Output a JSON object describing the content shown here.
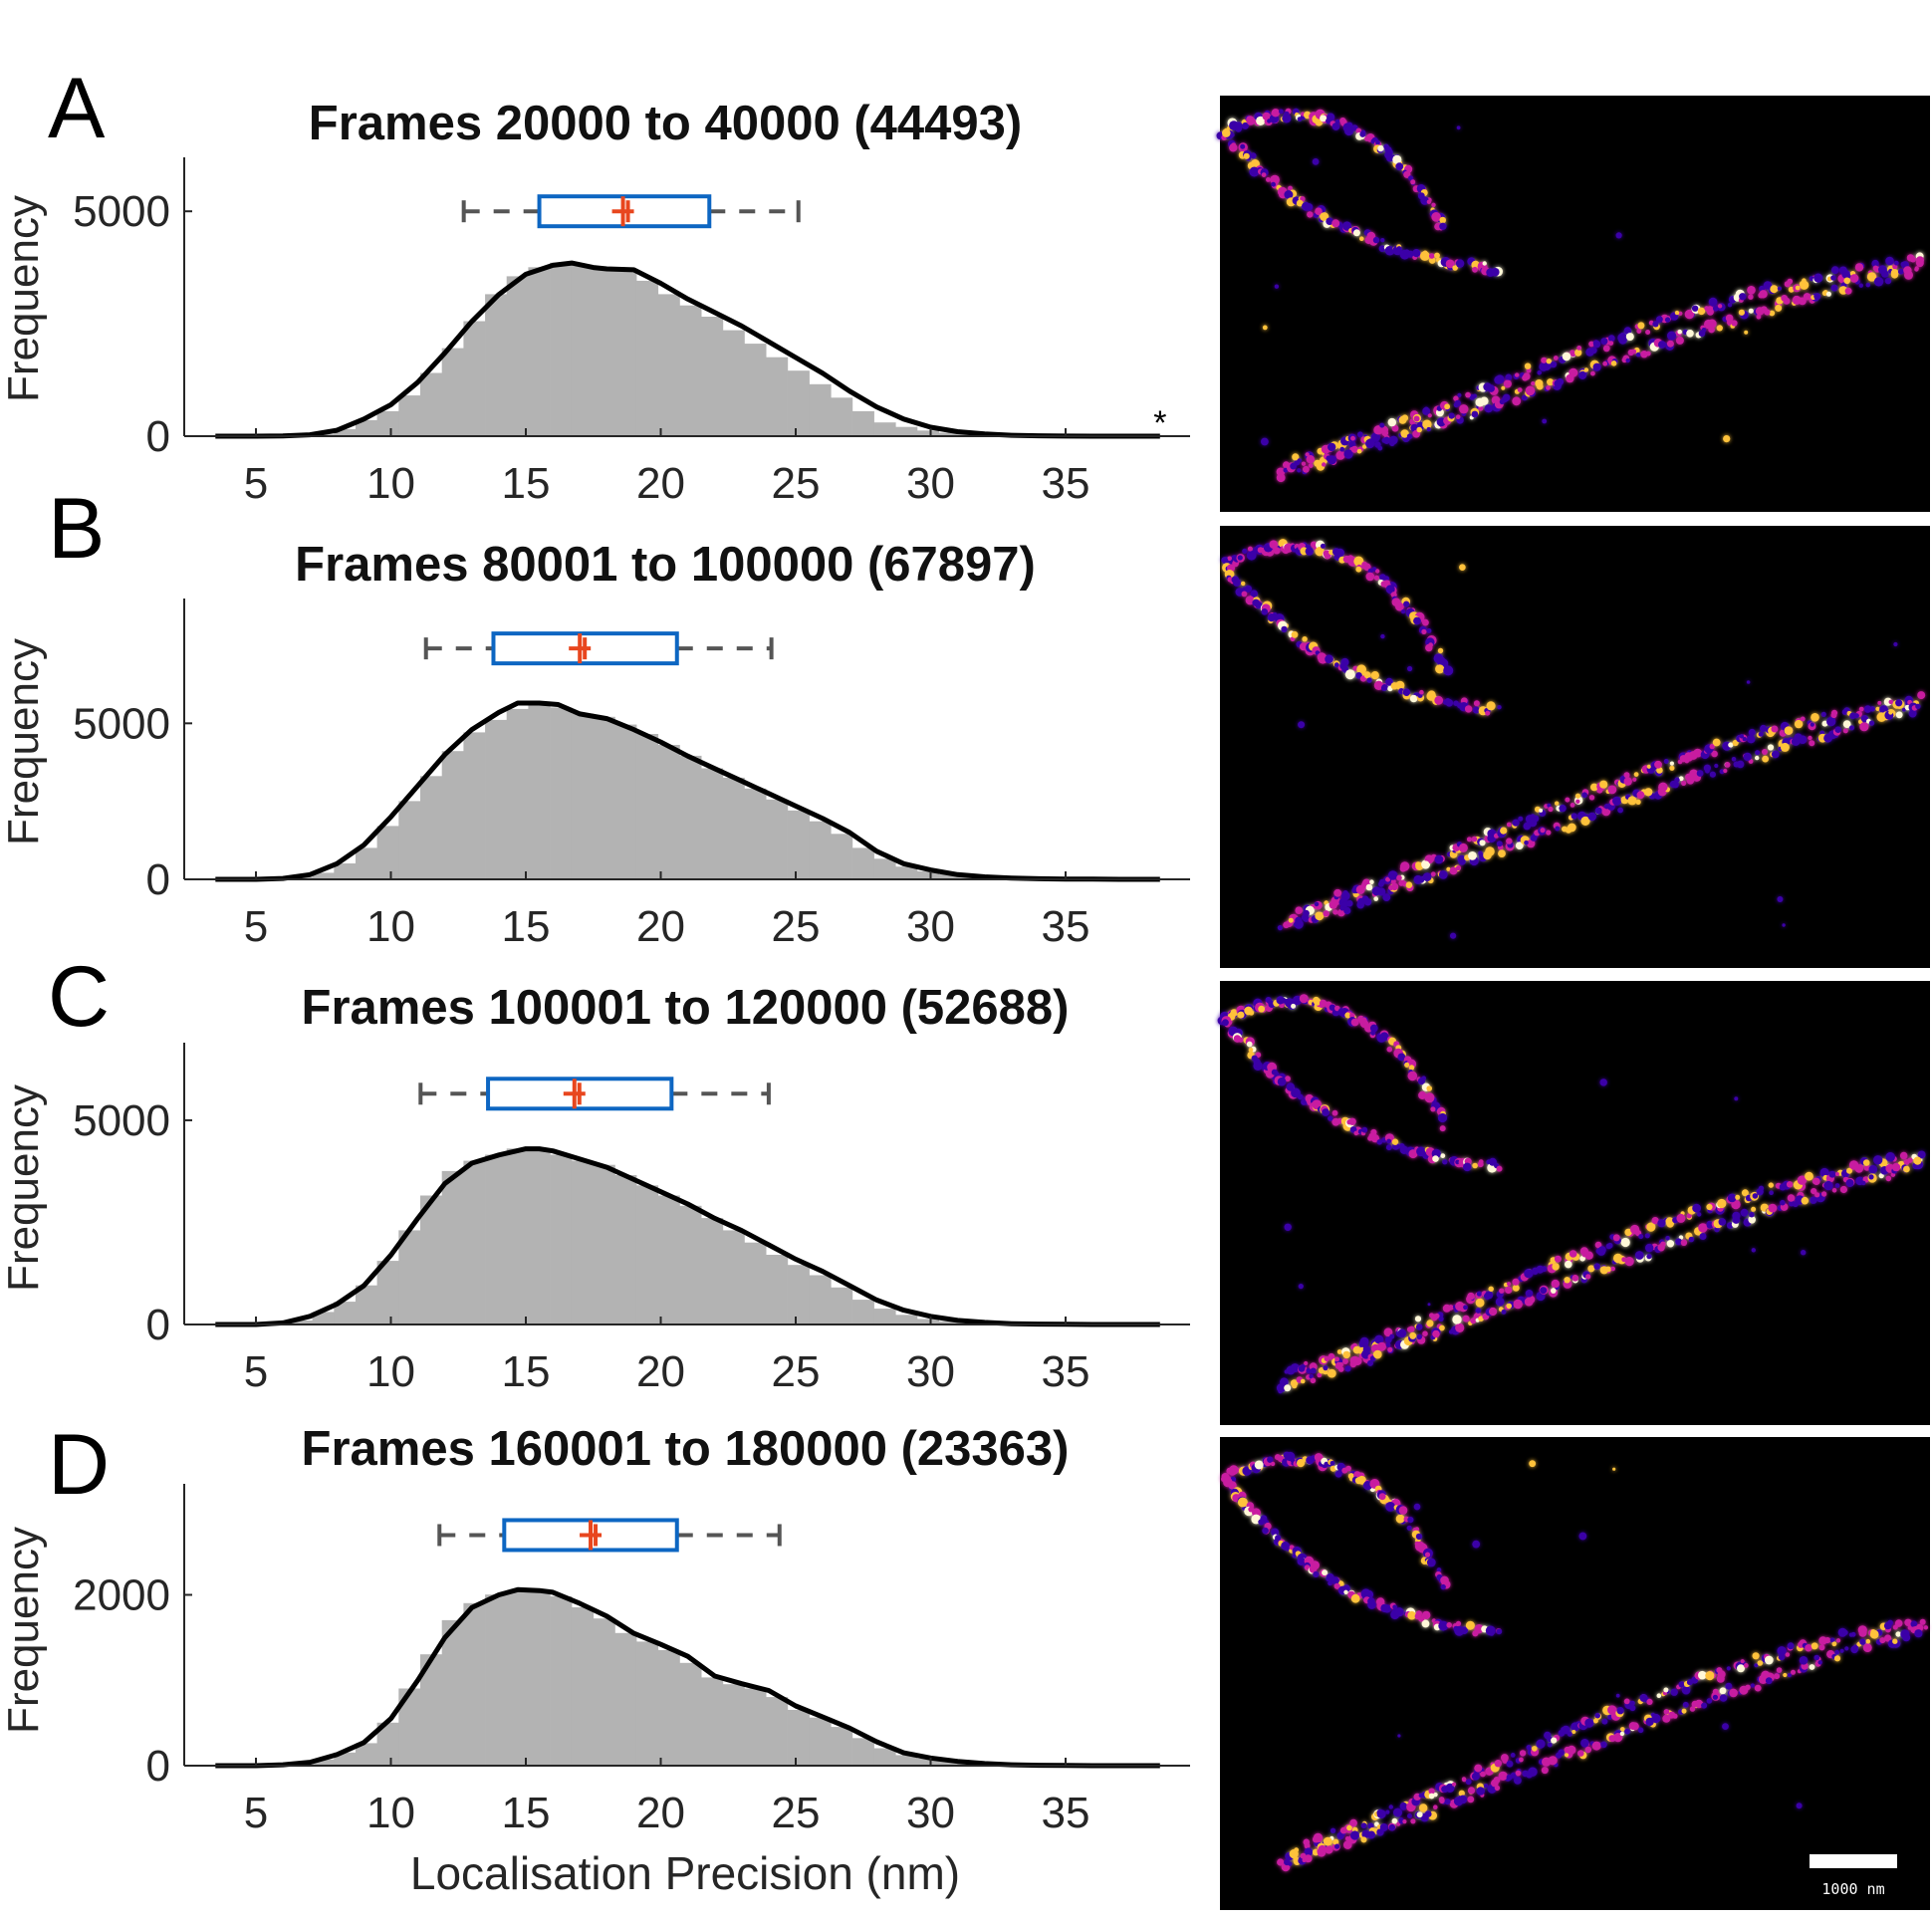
{
  "chart_data": [
    {
      "type": "histogram",
      "panel": "A",
      "title": "Frames 20000 to 40000 (44493)",
      "xlabel": "",
      "ylabel": "Frequency",
      "xlim": [
        2.5,
        40
      ],
      "ylim": [
        0,
        6200
      ],
      "xticks": [
        5,
        10,
        15,
        20,
        25,
        30,
        35
      ],
      "yticks": [
        0,
        5000
      ],
      "bin_width": 0.8,
      "bins": [
        {
          "x": 3.5,
          "y": 0
        },
        {
          "x": 4.3,
          "y": 0
        },
        {
          "x": 5.1,
          "y": 0
        },
        {
          "x": 5.9,
          "y": 0
        },
        {
          "x": 6.7,
          "y": 10
        },
        {
          "x": 7.5,
          "y": 35
        },
        {
          "x": 8.3,
          "y": 150
        },
        {
          "x": 9.1,
          "y": 350
        },
        {
          "x": 9.9,
          "y": 550
        },
        {
          "x": 10.7,
          "y": 900
        },
        {
          "x": 11.5,
          "y": 1400
        },
        {
          "x": 12.3,
          "y": 1950
        },
        {
          "x": 13.1,
          "y": 2550
        },
        {
          "x": 13.9,
          "y": 3150
        },
        {
          "x": 14.7,
          "y": 3550
        },
        {
          "x": 15.5,
          "y": 3750
        },
        {
          "x": 16.3,
          "y": 3850
        },
        {
          "x": 17.1,
          "y": 3800
        },
        {
          "x": 17.9,
          "y": 3700
        },
        {
          "x": 18.7,
          "y": 3700
        },
        {
          "x": 19.5,
          "y": 3450
        },
        {
          "x": 20.3,
          "y": 3150
        },
        {
          "x": 21.1,
          "y": 2900
        },
        {
          "x": 21.9,
          "y": 2650
        },
        {
          "x": 22.7,
          "y": 2350
        },
        {
          "x": 23.5,
          "y": 2050
        },
        {
          "x": 24.3,
          "y": 1750
        },
        {
          "x": 25.1,
          "y": 1450
        },
        {
          "x": 25.9,
          "y": 1150
        },
        {
          "x": 26.7,
          "y": 850
        },
        {
          "x": 27.5,
          "y": 550
        },
        {
          "x": 28.3,
          "y": 300
        },
        {
          "x": 29.1,
          "y": 200
        },
        {
          "x": 29.9,
          "y": 120
        },
        {
          "x": 30.7,
          "y": 70
        },
        {
          "x": 31.5,
          "y": 40
        },
        {
          "x": 32.3,
          "y": 20
        },
        {
          "x": 33.1,
          "y": 10
        },
        {
          "x": 33.9,
          "y": 5
        },
        {
          "x": 34.7,
          "y": 0
        },
        {
          "x": 35.5,
          "y": 0
        },
        {
          "x": 36.3,
          "y": 0
        },
        {
          "x": 37.1,
          "y": 0
        },
        {
          "x": 37.9,
          "y": 0
        }
      ],
      "kde": {
        "x": [
          3.5,
          5,
          6,
          7,
          8,
          9,
          10,
          11,
          12,
          13,
          14,
          15,
          16,
          16.7,
          17.5,
          18,
          19,
          20,
          21,
          22,
          23,
          24,
          25,
          26,
          27,
          28,
          29,
          30,
          31,
          32,
          33,
          34,
          35,
          36,
          37,
          38.5
        ],
        "y": [
          0,
          0,
          5,
          30,
          130,
          380,
          700,
          1200,
          1850,
          2550,
          3150,
          3600,
          3800,
          3850,
          3750,
          3720,
          3700,
          3400,
          3050,
          2750,
          2450,
          2100,
          1750,
          1400,
          1000,
          650,
          380,
          200,
          100,
          50,
          20,
          8,
          3,
          0,
          0,
          0
        ]
      },
      "boxplot": {
        "whisker_low": 12.7,
        "q1": 15.5,
        "median": 18.6,
        "mean": 18.6,
        "q3": 21.8,
        "whisker_high": 25.1,
        "y": 5000
      },
      "annotation": "*",
      "annotation_x": 38.5,
      "annotation_y": 0
    },
    {
      "type": "histogram",
      "panel": "B",
      "title": "Frames 80001 to 100000 (67897)",
      "xlabel": "",
      "ylabel": "Frequency",
      "xlim": [
        2.5,
        40
      ],
      "ylim": [
        0,
        9000
      ],
      "xticks": [
        5,
        10,
        15,
        20,
        25,
        30,
        35
      ],
      "yticks": [
        0,
        5000
      ],
      "bin_width": 0.8,
      "bins": [
        {
          "x": 3.5,
          "y": 0
        },
        {
          "x": 4.3,
          "y": 0
        },
        {
          "x": 5.1,
          "y": 0
        },
        {
          "x": 5.9,
          "y": 20
        },
        {
          "x": 6.7,
          "y": 60
        },
        {
          "x": 7.5,
          "y": 200
        },
        {
          "x": 8.3,
          "y": 500
        },
        {
          "x": 9.1,
          "y": 1000
        },
        {
          "x": 9.9,
          "y": 1700
        },
        {
          "x": 10.7,
          "y": 2500
        },
        {
          "x": 11.5,
          "y": 3300
        },
        {
          "x": 12.3,
          "y": 4100
        },
        {
          "x": 13.1,
          "y": 4700
        },
        {
          "x": 13.9,
          "y": 5100
        },
        {
          "x": 14.7,
          "y": 5450
        },
        {
          "x": 15.5,
          "y": 5650
        },
        {
          "x": 16.3,
          "y": 5500
        },
        {
          "x": 17.1,
          "y": 5300
        },
        {
          "x": 17.9,
          "y": 5200
        },
        {
          "x": 18.7,
          "y": 4950
        },
        {
          "x": 19.5,
          "y": 4650
        },
        {
          "x": 20.3,
          "y": 4300
        },
        {
          "x": 21.1,
          "y": 3950
        },
        {
          "x": 21.9,
          "y": 3550
        },
        {
          "x": 22.7,
          "y": 3250
        },
        {
          "x": 23.5,
          "y": 2900
        },
        {
          "x": 24.3,
          "y": 2550
        },
        {
          "x": 25.1,
          "y": 2200
        },
        {
          "x": 25.9,
          "y": 1850
        },
        {
          "x": 26.7,
          "y": 1450
        },
        {
          "x": 27.5,
          "y": 1000
        },
        {
          "x": 28.3,
          "y": 650
        },
        {
          "x": 29.1,
          "y": 400
        },
        {
          "x": 29.9,
          "y": 250
        },
        {
          "x": 30.7,
          "y": 150
        },
        {
          "x": 31.5,
          "y": 80
        },
        {
          "x": 32.3,
          "y": 40
        },
        {
          "x": 33.1,
          "y": 20
        },
        {
          "x": 33.9,
          "y": 10
        },
        {
          "x": 34.7,
          "y": 5
        },
        {
          "x": 35.5,
          "y": 0
        },
        {
          "x": 36.3,
          "y": 0
        },
        {
          "x": 37.1,
          "y": 0
        },
        {
          "x": 37.9,
          "y": 0
        }
      ],
      "kde": {
        "x": [
          3.5,
          5,
          6,
          7,
          8,
          9,
          10,
          11,
          12,
          13,
          14,
          14.7,
          15.5,
          16.2,
          17,
          18,
          19,
          20,
          21,
          22,
          23,
          24,
          25,
          26,
          27,
          28,
          29,
          30,
          31,
          32,
          33,
          34,
          35,
          36,
          37,
          38.5
        ],
        "y": [
          0,
          0,
          30,
          150,
          500,
          1100,
          2000,
          3000,
          4000,
          4800,
          5350,
          5650,
          5650,
          5600,
          5300,
          5150,
          4800,
          4400,
          3950,
          3550,
          3150,
          2750,
          2350,
          1950,
          1500,
          900,
          500,
          300,
          150,
          80,
          40,
          20,
          10,
          5,
          0,
          0
        ]
      },
      "boxplot": {
        "whisker_low": 11.3,
        "q1": 13.8,
        "median": 17.0,
        "mean": 17.0,
        "q3": 20.6,
        "whisker_high": 24.1,
        "y": 7400
      }
    },
    {
      "type": "histogram",
      "panel": "C",
      "title": "Frames 100001 to 120000 (52688)",
      "xlabel": "",
      "ylabel": "Frequency",
      "xlim": [
        2.5,
        40
      ],
      "ylim": [
        0,
        6900
      ],
      "xticks": [
        5,
        10,
        15,
        20,
        25,
        30,
        35
      ],
      "yticks": [
        0,
        5000
      ],
      "bin_width": 0.8,
      "bins": [
        {
          "x": 3.5,
          "y": 0
        },
        {
          "x": 4.3,
          "y": 0
        },
        {
          "x": 5.1,
          "y": 0
        },
        {
          "x": 5.9,
          "y": 20
        },
        {
          "x": 6.7,
          "y": 90
        },
        {
          "x": 7.5,
          "y": 300
        },
        {
          "x": 8.3,
          "y": 550
        },
        {
          "x": 9.1,
          "y": 950
        },
        {
          "x": 9.9,
          "y": 1550
        },
        {
          "x": 10.7,
          "y": 2300
        },
        {
          "x": 11.5,
          "y": 3150
        },
        {
          "x": 12.3,
          "y": 3750
        },
        {
          "x": 13.1,
          "y": 4000
        },
        {
          "x": 13.9,
          "y": 4150
        },
        {
          "x": 14.7,
          "y": 4300
        },
        {
          "x": 15.5,
          "y": 4300
        },
        {
          "x": 16.3,
          "y": 4150
        },
        {
          "x": 17.1,
          "y": 4000
        },
        {
          "x": 17.9,
          "y": 3900
        },
        {
          "x": 18.7,
          "y": 3650
        },
        {
          "x": 19.5,
          "y": 3400
        },
        {
          "x": 20.3,
          "y": 3150
        },
        {
          "x": 21.1,
          "y": 2900
        },
        {
          "x": 21.9,
          "y": 2600
        },
        {
          "x": 22.7,
          "y": 2300
        },
        {
          "x": 23.5,
          "y": 2000
        },
        {
          "x": 24.3,
          "y": 1700
        },
        {
          "x": 25.1,
          "y": 1450
        },
        {
          "x": 25.9,
          "y": 1200
        },
        {
          "x": 26.7,
          "y": 900
        },
        {
          "x": 27.5,
          "y": 600
        },
        {
          "x": 28.3,
          "y": 380
        },
        {
          "x": 29.1,
          "y": 230
        },
        {
          "x": 29.9,
          "y": 130
        },
        {
          "x": 30.7,
          "y": 70
        },
        {
          "x": 31.5,
          "y": 35
        },
        {
          "x": 32.3,
          "y": 15
        },
        {
          "x": 33.1,
          "y": 8
        },
        {
          "x": 33.9,
          "y": 3
        },
        {
          "x": 34.7,
          "y": 0
        },
        {
          "x": 35.5,
          "y": 0
        },
        {
          "x": 36.3,
          "y": 0
        },
        {
          "x": 37.1,
          "y": 0
        },
        {
          "x": 37.9,
          "y": 0
        }
      ],
      "kde": {
        "x": [
          3.5,
          5,
          6,
          7,
          8,
          9,
          10,
          11,
          12,
          13,
          14,
          15,
          15.5,
          16,
          17,
          18,
          19,
          20,
          21,
          22,
          23,
          24,
          25,
          26,
          27,
          28,
          29,
          30,
          31,
          32,
          33,
          34,
          35,
          36,
          37,
          38.5
        ],
        "y": [
          0,
          0,
          40,
          200,
          500,
          950,
          1700,
          2600,
          3450,
          3950,
          4150,
          4300,
          4300,
          4250,
          4050,
          3850,
          3550,
          3250,
          2950,
          2600,
          2300,
          1950,
          1600,
          1300,
          950,
          600,
          350,
          200,
          100,
          50,
          20,
          10,
          5,
          0,
          0,
          0
        ]
      },
      "boxplot": {
        "whisker_low": 11.1,
        "q1": 13.6,
        "median": 16.8,
        "mean": 16.8,
        "q3": 20.4,
        "whisker_high": 24.0,
        "y": 5650
      }
    },
    {
      "type": "histogram",
      "panel": "D",
      "title": "Frames 160001 to 180000 (23363)",
      "xlabel": "Localisation Precision (nm)",
      "ylabel": "Frequency",
      "xlim": [
        2.5,
        40
      ],
      "ylim": [
        0,
        3300
      ],
      "xticks": [
        5,
        10,
        15,
        20,
        25,
        30,
        35
      ],
      "yticks": [
        0,
        2000
      ],
      "bin_width": 0.8,
      "bins": [
        {
          "x": 3.5,
          "y": 0
        },
        {
          "x": 4.3,
          "y": 0
        },
        {
          "x": 5.1,
          "y": 0
        },
        {
          "x": 5.9,
          "y": 5
        },
        {
          "x": 6.7,
          "y": 20
        },
        {
          "x": 7.5,
          "y": 70
        },
        {
          "x": 8.3,
          "y": 150
        },
        {
          "x": 9.1,
          "y": 260
        },
        {
          "x": 9.9,
          "y": 500
        },
        {
          "x": 10.7,
          "y": 900
        },
        {
          "x": 11.5,
          "y": 1300
        },
        {
          "x": 12.3,
          "y": 1700
        },
        {
          "x": 13.1,
          "y": 1900
        },
        {
          "x": 13.9,
          "y": 2000
        },
        {
          "x": 14.7,
          "y": 2050
        },
        {
          "x": 15.5,
          "y": 2050
        },
        {
          "x": 16.3,
          "y": 1980
        },
        {
          "x": 17.1,
          "y": 1850
        },
        {
          "x": 17.9,
          "y": 1720
        },
        {
          "x": 18.7,
          "y": 1550
        },
        {
          "x": 19.5,
          "y": 1450
        },
        {
          "x": 20.3,
          "y": 1350
        },
        {
          "x": 21.1,
          "y": 1200
        },
        {
          "x": 21.9,
          "y": 1030
        },
        {
          "x": 22.7,
          "y": 950
        },
        {
          "x": 23.5,
          "y": 900
        },
        {
          "x": 24.3,
          "y": 800
        },
        {
          "x": 25.1,
          "y": 650
        },
        {
          "x": 25.9,
          "y": 560
        },
        {
          "x": 26.7,
          "y": 450
        },
        {
          "x": 27.5,
          "y": 320
        },
        {
          "x": 28.3,
          "y": 200
        },
        {
          "x": 29.1,
          "y": 120
        },
        {
          "x": 29.9,
          "y": 80
        },
        {
          "x": 30.7,
          "y": 50
        },
        {
          "x": 31.5,
          "y": 25
        },
        {
          "x": 32.3,
          "y": 12
        },
        {
          "x": 33.1,
          "y": 5
        },
        {
          "x": 33.9,
          "y": 2
        },
        {
          "x": 34.7,
          "y": 0
        },
        {
          "x": 35.5,
          "y": 0
        },
        {
          "x": 36.3,
          "y": 0
        },
        {
          "x": 37.1,
          "y": 0
        },
        {
          "x": 37.9,
          "y": 0
        }
      ],
      "kde": {
        "x": [
          3.5,
          5,
          6,
          7,
          8,
          9,
          10,
          11,
          12,
          13,
          14,
          14.7,
          15.5,
          16,
          17,
          18,
          19,
          20,
          21,
          22,
          23,
          24,
          25,
          26,
          27,
          28,
          29,
          30,
          31,
          32,
          33,
          34,
          35,
          36,
          37,
          38.5
        ],
        "y": [
          0,
          0,
          10,
          40,
          130,
          270,
          550,
          1000,
          1500,
          1850,
          2000,
          2060,
          2050,
          2030,
          1900,
          1750,
          1550,
          1420,
          1280,
          1050,
          960,
          880,
          700,
          570,
          440,
          280,
          150,
          90,
          50,
          25,
          10,
          5,
          2,
          0,
          0,
          0
        ]
      },
      "boxplot": {
        "whisker_low": 11.8,
        "q1": 14.2,
        "median": 17.4,
        "mean": 17.4,
        "q3": 20.6,
        "whisker_high": 24.4,
        "y": 2700
      }
    }
  ],
  "images": [
    {
      "panel": "A",
      "name": "super-resolution-image-a"
    },
    {
      "panel": "B",
      "name": "super-resolution-image-b"
    },
    {
      "panel": "C",
      "name": "super-resolution-image-c"
    },
    {
      "panel": "D",
      "name": "super-resolution-image-d",
      "scale_bar_label": "1000 nm"
    }
  ],
  "colors": {
    "bars": "#b3b3b3",
    "kde": "#000000",
    "box": "#0d66c2",
    "median": "#e8461e",
    "whisker": "#555555",
    "image_background": "#000000",
    "filament_low": "#3a00a8",
    "filament_mid": "#c81fa0",
    "filament_high": "#ffc23a",
    "filament_peak": "#fff8d8"
  }
}
